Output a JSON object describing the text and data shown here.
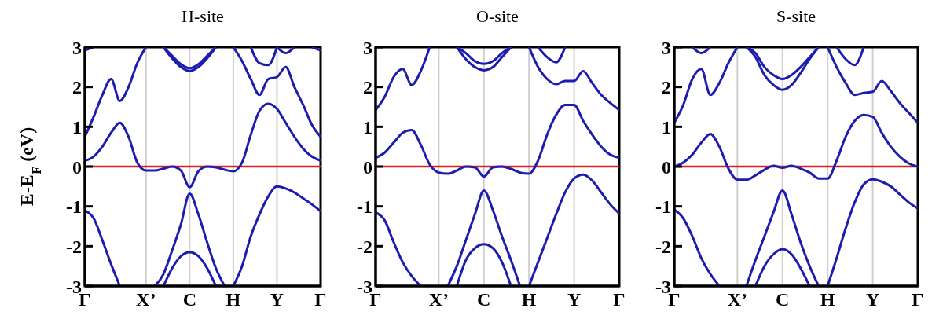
{
  "chart_data": [
    {
      "type": "line",
      "title": "H-site",
      "ylabel": "E-E$_{F}$ (eV)",
      "categories": [
        "Γ",
        null,
        null,
        null,
        null,
        null,
        null,
        "X’",
        null,
        null,
        null,
        null,
        "C",
        null,
        null,
        null,
        null,
        "H",
        null,
        null,
        null,
        null,
        "Y",
        null,
        null,
        null,
        null,
        "Γ"
      ],
      "ylim": [
        -3,
        3
      ],
      "yticks": [
        -3,
        -2,
        -1,
        0,
        1,
        2,
        3
      ],
      "grid": "x",
      "marker": "none",
      "line_style": "solid",
      "ref_lines": [
        {
          "axis": "y",
          "value": 0,
          "color": "#d42020"
        }
      ],
      "series": [
        {
          "color": "#1c1cb0",
          "values": [
            -1.1,
            -1.3,
            -1.85,
            -2.45,
            -3,
            null,
            null,
            null,
            null,
            null,
            null,
            null,
            null,
            null,
            null,
            null,
            null,
            -3,
            -2.5,
            -1.75,
            -1.2,
            -0.75,
            -0.5,
            -0.55,
            -0.65,
            -0.8,
            -0.95,
            -1.12
          ]
        },
        {
          "color": "#1c1cb0",
          "values": [
            null,
            null,
            null,
            null,
            null,
            null,
            null,
            null,
            -3,
            -2.7,
            -2.1,
            -1.45,
            -0.68,
            -1.2,
            -1.9,
            -2.55,
            -3,
            null,
            null,
            null,
            null,
            null,
            null,
            null,
            null,
            null,
            null,
            null
          ]
        },
        {
          "color": "#1c1cb0",
          "values": [
            null,
            null,
            null,
            null,
            null,
            null,
            null,
            null,
            null,
            -3,
            -2.55,
            -2.25,
            -2.15,
            -2.25,
            -2.55,
            -3,
            null,
            null,
            null,
            null,
            null,
            null,
            null,
            null,
            null,
            null,
            null,
            null
          ]
        },
        {
          "color": "#1c1cb0",
          "values": [
            0.15,
            0.25,
            0.5,
            0.85,
            1.1,
            0.75,
            0.1,
            -0.1,
            -0.1,
            -0.05,
            0,
            -0.1,
            -0.52,
            -0.12,
            0,
            -0.02,
            -0.08,
            -0.12,
            0.1,
            0.8,
            1.4,
            1.58,
            1.45,
            1.1,
            0.75,
            0.45,
            0.25,
            0.15
          ]
        },
        {
          "color": "#1c1cb0",
          "values": [
            0.75,
            1.25,
            1.8,
            2.2,
            1.65,
            2,
            2.6,
            3,
            null,
            null,
            null,
            null,
            null,
            null,
            null,
            null,
            null,
            3,
            2.65,
            2.2,
            1.8,
            2.2,
            2.25,
            2.5,
            2,
            1.55,
            1.05,
            0.75
          ]
        },
        {
          "color": "#1c1cb0",
          "values": [
            null,
            null,
            null,
            null,
            null,
            null,
            null,
            null,
            null,
            3,
            2.72,
            2.5,
            2.4,
            2.5,
            2.72,
            3,
            null,
            null,
            null,
            3,
            2.6,
            2.55,
            3,
            null,
            null,
            null,
            null,
            null
          ]
        },
        {
          "color": "#1c1cb0",
          "values": [
            null,
            null,
            null,
            null,
            null,
            null,
            null,
            null,
            null,
            3,
            2.78,
            2.57,
            2.47,
            2.57,
            2.78,
            3,
            null,
            null,
            null,
            null,
            null,
            null,
            null,
            null,
            null,
            null,
            null,
            null
          ]
        },
        {
          "color": "#1c1cb0",
          "values": [
            2.92,
            3,
            null,
            null,
            null,
            null,
            null,
            null,
            null,
            null,
            null,
            null,
            null,
            null,
            null,
            null,
            null,
            null,
            null,
            null,
            null,
            null,
            3,
            2.85,
            3,
            null,
            3,
            2.92
          ]
        }
      ]
    },
    {
      "type": "line",
      "title": "O-site",
      "categories": [
        "Γ",
        null,
        null,
        null,
        null,
        null,
        null,
        "X’",
        null,
        null,
        null,
        null,
        "C",
        null,
        null,
        null,
        null,
        "H",
        null,
        null,
        null,
        null,
        "Y",
        null,
        null,
        null,
        null,
        "Γ"
      ],
      "ylim": [
        -3,
        3
      ],
      "yticks": [
        -3,
        -2,
        -1,
        0,
        1,
        2,
        3
      ],
      "grid": "x",
      "marker": "none",
      "line_style": "solid",
      "ref_lines": [
        {
          "axis": "y",
          "value": 0,
          "color": "#d42020"
        }
      ],
      "series": [
        {
          "color": "#1c1cb0",
          "values": [
            -1.15,
            -1.35,
            -1.9,
            -2.4,
            -2.75,
            -3,
            null,
            null,
            null,
            null,
            null,
            null,
            null,
            null,
            null,
            null,
            null,
            -3,
            -2.4,
            -1.8,
            -1.2,
            -0.65,
            -0.3,
            -0.2,
            -0.35,
            -0.65,
            -0.95,
            -1.18
          ]
        },
        {
          "color": "#1c1cb0",
          "values": [
            null,
            null,
            null,
            null,
            null,
            null,
            null,
            null,
            -3,
            -2.5,
            -1.85,
            -1.2,
            -0.6,
            -1.1,
            -1.75,
            -2.35,
            -3,
            null,
            null,
            null,
            null,
            null,
            null,
            null,
            null,
            null,
            null,
            null
          ]
        },
        {
          "color": "#1c1cb0",
          "values": [
            null,
            null,
            null,
            null,
            null,
            null,
            null,
            null,
            null,
            -3,
            -2.35,
            -2.05,
            -1.95,
            -2.05,
            -2.4,
            -3,
            null,
            null,
            null,
            null,
            null,
            null,
            null,
            null,
            null,
            null,
            null,
            null
          ]
        },
        {
          "color": "#1c1cb0",
          "values": [
            0.22,
            0.35,
            0.6,
            0.85,
            0.92,
            0.55,
            0.05,
            -0.15,
            -0.18,
            -0.1,
            0,
            -0.02,
            -0.25,
            -0.02,
            0,
            -0.06,
            -0.15,
            -0.18,
            0.15,
            0.8,
            1.3,
            1.55,
            1.55,
            1.15,
            0.8,
            0.5,
            0.3,
            0.22
          ]
        },
        {
          "color": "#1c1cb0",
          "values": [
            1.42,
            1.75,
            2.25,
            2.45,
            2.05,
            2.4,
            3,
            null,
            null,
            null,
            null,
            null,
            null,
            null,
            null,
            null,
            null,
            3,
            2.5,
            2.2,
            2.07,
            2.15,
            2.15,
            2.4,
            2.1,
            1.8,
            1.6,
            1.42
          ]
        },
        {
          "color": "#1c1cb0",
          "values": [
            null,
            null,
            null,
            null,
            null,
            null,
            null,
            null,
            null,
            3,
            2.7,
            2.5,
            2.42,
            2.5,
            2.75,
            3,
            null,
            null,
            3,
            2.75,
            2.62,
            3,
            null,
            null,
            null,
            null,
            null,
            null
          ]
        },
        {
          "color": "#1c1cb0",
          "values": [
            null,
            null,
            null,
            null,
            null,
            null,
            null,
            null,
            null,
            3,
            2.85,
            2.65,
            2.58,
            2.65,
            2.85,
            3,
            null,
            null,
            null,
            null,
            null,
            null,
            null,
            null,
            null,
            null,
            null,
            null
          ]
        }
      ]
    },
    {
      "type": "line",
      "title": "S-site",
      "categories": [
        "Γ",
        null,
        null,
        null,
        null,
        null,
        null,
        "X’",
        null,
        null,
        null,
        null,
        "C",
        null,
        null,
        null,
        null,
        "H",
        null,
        null,
        null,
        null,
        "Y",
        null,
        null,
        null,
        null,
        "Γ"
      ],
      "ylim": [
        -3,
        3
      ],
      "yticks": [
        -3,
        -2,
        -1,
        0,
        1,
        2,
        3
      ],
      "grid": "x",
      "marker": "none",
      "line_style": "solid",
      "ref_lines": [
        {
          "axis": "y",
          "value": 0,
          "color": "#d42020"
        }
      ],
      "series": [
        {
          "color": "#1c1cb0",
          "values": [
            -1.08,
            -1.3,
            -1.75,
            -2.3,
            -2.7,
            -3,
            null,
            null,
            null,
            null,
            null,
            null,
            null,
            null,
            null,
            null,
            null,
            -3,
            -2.3,
            -1.55,
            -0.9,
            -0.45,
            -0.32,
            -0.38,
            -0.5,
            -0.7,
            -0.9,
            -1.05
          ]
        },
        {
          "color": "#1c1cb0",
          "values": [
            null,
            null,
            null,
            null,
            null,
            null,
            null,
            null,
            -3,
            -2.35,
            -1.75,
            -1.15,
            -0.6,
            -1.2,
            -1.9,
            -2.5,
            -3,
            null,
            null,
            null,
            null,
            null,
            null,
            null,
            null,
            null,
            null,
            null
          ]
        },
        {
          "color": "#1c1cb0",
          "values": [
            null,
            null,
            null,
            null,
            null,
            null,
            null,
            null,
            null,
            -3,
            -2.5,
            -2.2,
            -2.07,
            -2.2,
            -2.55,
            -3,
            null,
            null,
            null,
            null,
            null,
            null,
            null,
            null,
            null,
            null,
            null,
            null
          ]
        },
        {
          "color": "#1c1cb0",
          "values": [
            0,
            0.1,
            0.3,
            0.6,
            0.82,
            0.5,
            -0.05,
            -0.33,
            -0.33,
            -0.22,
            -0.08,
            0.02,
            -0.03,
            0.02,
            -0.05,
            -0.15,
            -0.3,
            -0.3,
            0.15,
            0.75,
            1.15,
            1.3,
            1.25,
            0.85,
            0.5,
            0.25,
            0.08,
            0
          ]
        },
        {
          "color": "#1c1cb0",
          "values": [
            1.1,
            1.55,
            2.2,
            2.45,
            1.8,
            2.1,
            2.6,
            3,
            null,
            null,
            null,
            null,
            null,
            null,
            null,
            null,
            null,
            3,
            2.5,
            2.1,
            1.8,
            1.85,
            1.88,
            2.15,
            1.9,
            1.6,
            1.35,
            1.1
          ]
        },
        {
          "color": "#1c1cb0",
          "values": [
            null,
            null,
            null,
            null,
            null,
            null,
            null,
            null,
            3,
            2.75,
            2.3,
            2.05,
            1.93,
            2.05,
            2.35,
            2.7,
            3,
            null,
            3,
            2.7,
            2.55,
            3,
            null,
            null,
            null,
            null,
            null,
            null
          ]
        },
        {
          "color": "#1c1cb0",
          "values": [
            null,
            null,
            null,
            null,
            null,
            null,
            null,
            null,
            3,
            2.85,
            2.5,
            2.3,
            2.2,
            2.3,
            2.5,
            2.75,
            3,
            null,
            null,
            null,
            null,
            null,
            null,
            null,
            null,
            null,
            null,
            null
          ]
        },
        {
          "color": "#1c1cb0",
          "values": [
            null,
            null,
            3,
            2.85,
            3,
            null,
            null,
            null,
            null,
            null,
            null,
            null,
            null,
            null,
            null,
            null,
            null,
            null,
            null,
            null,
            null,
            null,
            null,
            null,
            null,
            null,
            null,
            null
          ]
        }
      ]
    }
  ]
}
